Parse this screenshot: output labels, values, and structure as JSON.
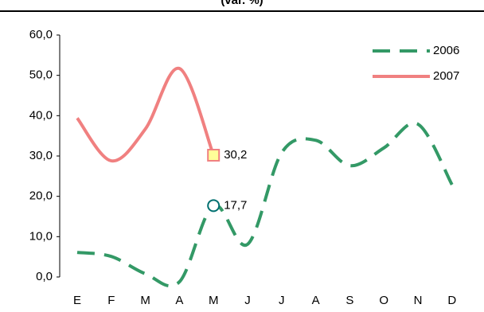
{
  "chart_data": {
    "type": "line",
    "title": "(var. %)",
    "categories": [
      "E",
      "F",
      "M",
      "A",
      "M",
      "J",
      "J",
      "A",
      "S",
      "O",
      "N",
      "D"
    ],
    "series": [
      {
        "name": "2006",
        "color": "#339966",
        "dash": true,
        "values": [
          6.1,
          5.1,
          0.8,
          -1.2,
          17.7,
          8.1,
          30.8,
          33.9,
          27.6,
          32.0,
          37.9,
          22.9
        ],
        "value_labels": [
          null,
          null,
          null,
          null,
          "17,7",
          null,
          null,
          null,
          null,
          null,
          null,
          null
        ]
      },
      {
        "name": "2007",
        "color": "#f08080",
        "dash": false,
        "values": [
          39.4,
          28.8,
          36.7,
          51.7,
          30.2,
          null,
          null,
          null,
          null,
          null,
          null,
          null
        ],
        "value_labels": [
          null,
          null,
          null,
          null,
          "30,2",
          null,
          null,
          null,
          null,
          null,
          null,
          null
        ]
      }
    ],
    "ylim": [
      0,
      60
    ],
    "yticks": [
      {
        "value": 0,
        "label": "0,0"
      },
      {
        "value": 10,
        "label": "10,0"
      },
      {
        "value": 20,
        "label": "20,0"
      },
      {
        "value": 30,
        "label": "30,0"
      },
      {
        "value": 40,
        "label": "40,0"
      },
      {
        "value": 50,
        "label": "50,0"
      },
      {
        "value": 60,
        "label": "60,0"
      }
    ],
    "legend": "top-right"
  }
}
